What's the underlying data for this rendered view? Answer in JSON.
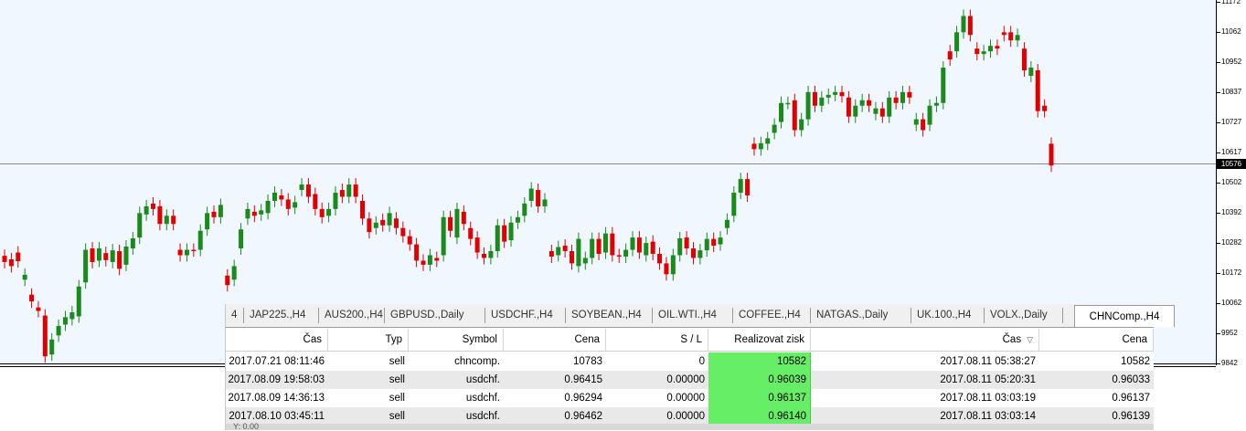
{
  "chart": {
    "axis_ticks": [
      "11172",
      "11062",
      "10952",
      "10837",
      "10727",
      "10617",
      "10502",
      "10392",
      "10282",
      "10172",
      "10062",
      "9952",
      "9842"
    ],
    "current_price": "10576",
    "colors": {
      "bull": "#1a8a1a",
      "bear": "#e00000",
      "background": "#f0f7ff",
      "price_line": "#888888"
    }
  },
  "chart_data": {
    "type": "candlestick",
    "ylim": [
      9842,
      11172
    ],
    "current_price": 10576,
    "series": [
      {
        "o": 10238,
        "c": 10215
      },
      {
        "o": 10225,
        "c": 10200
      },
      {
        "o": 10250,
        "c": 10218
      },
      {
        "o": 10150,
        "c": 10168
      },
      {
        "o": 10095,
        "c": 10070
      },
      {
        "o": 10048,
        "c": 10035
      },
      {
        "o": 10018,
        "c": 9868
      },
      {
        "o": 9875,
        "c": 9930
      },
      {
        "o": 9945,
        "c": 9980
      },
      {
        "o": 9985,
        "c": 10012
      },
      {
        "o": 10005,
        "c": 10030
      },
      {
        "o": 10015,
        "c": 10125
      },
      {
        "o": 10140,
        "c": 10260
      },
      {
        "o": 10265,
        "c": 10215
      },
      {
        "o": 10220,
        "c": 10265
      },
      {
        "o": 10248,
        "c": 10222
      },
      {
        "o": 10215,
        "c": 10258
      },
      {
        "o": 10255,
        "c": 10190
      },
      {
        "o": 10205,
        "c": 10272
      },
      {
        "o": 10265,
        "c": 10302
      },
      {
        "o": 10305,
        "c": 10395
      },
      {
        "o": 10390,
        "c": 10420
      },
      {
        "o": 10430,
        "c": 10410
      },
      {
        "o": 10420,
        "c": 10355
      },
      {
        "o": 10355,
        "c": 10385
      },
      {
        "o": 10385,
        "c": 10355
      },
      {
        "o": 10260,
        "c": 10240
      },
      {
        "o": 10240,
        "c": 10260
      },
      {
        "o": 10260,
        "c": 10258
      },
      {
        "o": 10260,
        "c": 10330
      },
      {
        "o": 10335,
        "c": 10395
      },
      {
        "o": 10400,
        "c": 10380
      },
      {
        "o": 10380,
        "c": 10425
      },
      {
        "o": 10165,
        "c": 10130
      },
      {
        "o": 10150,
        "c": 10200
      },
      {
        "o": 10265,
        "c": 10335
      },
      {
        "o": 10375,
        "c": 10410
      },
      {
        "o": 10400,
        "c": 10385
      },
      {
        "o": 10390,
        "c": 10405
      },
      {
        "o": 10395,
        "c": 10440
      },
      {
        "o": 10440,
        "c": 10470
      },
      {
        "o": 10460,
        "c": 10445
      },
      {
        "o": 10445,
        "c": 10410
      },
      {
        "o": 10415,
        "c": 10435
      },
      {
        "o": 10480,
        "c": 10500
      },
      {
        "o": 10500,
        "c": 10455
      },
      {
        "o": 10465,
        "c": 10410
      },
      {
        "o": 10410,
        "c": 10380
      },
      {
        "o": 10385,
        "c": 10410
      },
      {
        "o": 10410,
        "c": 10470
      },
      {
        "o": 10480,
        "c": 10455
      },
      {
        "o": 10455,
        "c": 10500
      },
      {
        "o": 10500,
        "c": 10455
      },
      {
        "o": 10440,
        "c": 10375
      },
      {
        "o": 10375,
        "c": 10325
      },
      {
        "o": 10340,
        "c": 10360
      },
      {
        "o": 10370,
        "c": 10350
      },
      {
        "o": 10350,
        "c": 10395
      },
      {
        "o": 10375,
        "c": 10340
      },
      {
        "o": 10340,
        "c": 10310
      },
      {
        "o": 10310,
        "c": 10280
      },
      {
        "o": 10280,
        "c": 10220
      },
      {
        "o": 10220,
        "c": 10205
      },
      {
        "o": 10205,
        "c": 10240
      },
      {
        "o": 10230,
        "c": 10220
      },
      {
        "o": 10240,
        "c": 10380
      },
      {
        "o": 10380,
        "c": 10330
      },
      {
        "o": 10305,
        "c": 10410
      },
      {
        "o": 10400,
        "c": 10355
      },
      {
        "o": 10340,
        "c": 10300
      },
      {
        "o": 10305,
        "c": 10250
      },
      {
        "o": 10245,
        "c": 10230
      },
      {
        "o": 10230,
        "c": 10255
      },
      {
        "o": 10255,
        "c": 10350
      },
      {
        "o": 10350,
        "c": 10290
      },
      {
        "o": 10295,
        "c": 10360
      },
      {
        "o": 10360,
        "c": 10380
      },
      {
        "o": 10385,
        "c": 10430
      },
      {
        "o": 10440,
        "c": 10485
      },
      {
        "o": 10480,
        "c": 10420
      },
      {
        "o": 10420,
        "c": 10445
      },
      {
        "o": 10255,
        "c": 10235
      },
      {
        "o": 10240,
        "c": 10270
      },
      {
        "o": 10275,
        "c": 10255
      },
      {
        "o": 10255,
        "c": 10210
      },
      {
        "o": 10200,
        "c": 10300
      },
      {
        "o": 10210,
        "c": 10230
      },
      {
        "o": 10230,
        "c": 10300
      },
      {
        "o": 10300,
        "c": 10245
      },
      {
        "o": 10250,
        "c": 10320
      },
      {
        "o": 10320,
        "c": 10240
      },
      {
        "o": 10240,
        "c": 10235
      },
      {
        "o": 10235,
        "c": 10260
      },
      {
        "o": 10260,
        "c": 10305
      },
      {
        "o": 10305,
        "c": 10250
      },
      {
        "o": 10240,
        "c": 10285
      },
      {
        "o": 10290,
        "c": 10245
      },
      {
        "o": 10245,
        "c": 10210
      },
      {
        "o": 10210,
        "c": 10170
      },
      {
        "o": 10170,
        "c": 10240
      },
      {
        "o": 10240,
        "c": 10302
      },
      {
        "o": 10305,
        "c": 10265
      },
      {
        "o": 10265,
        "c": 10230
      },
      {
        "o": 10230,
        "c": 10258
      },
      {
        "o": 10258,
        "c": 10300
      },
      {
        "o": 10300,
        "c": 10275
      },
      {
        "o": 10280,
        "c": 10305
      },
      {
        "o": 10340,
        "c": 10370
      },
      {
        "o": 10385,
        "c": 10470
      },
      {
        "o": 10470,
        "c": 10520
      },
      {
        "o": 10520,
        "c": 10460
      },
      {
        "o": 10650,
        "c": 10630
      },
      {
        "o": 10630,
        "c": 10652
      },
      {
        "o": 10650,
        "c": 10670
      },
      {
        "o": 10690,
        "c": 10720
      },
      {
        "o": 10730,
        "c": 10800
      },
      {
        "o": 10800,
        "c": 10800
      },
      {
        "o": 10810,
        "c": 10700
      },
      {
        "o": 10700,
        "c": 10740
      },
      {
        "o": 10740,
        "c": 10840
      },
      {
        "o": 10840,
        "c": 10790
      },
      {
        "o": 10790,
        "c": 10820
      },
      {
        "o": 10820,
        "c": 10830
      },
      {
        "o": 10830,
        "c": 10840
      },
      {
        "o": 10840,
        "c": 10825
      },
      {
        "o": 10820,
        "c": 10750
      },
      {
        "o": 10750,
        "c": 10790
      },
      {
        "o": 10790,
        "c": 10810
      },
      {
        "o": 10810,
        "c": 10790
      },
      {
        "o": 10760,
        "c": 10780
      },
      {
        "o": 10780,
        "c": 10750
      },
      {
        "o": 10750,
        "c": 10820
      },
      {
        "o": 10820,
        "c": 10800
      },
      {
        "o": 10800,
        "c": 10840
      },
      {
        "o": 10840,
        "c": 10820
      },
      {
        "o": 10720,
        "c": 10740
      },
      {
        "o": 10740,
        "c": 10700
      },
      {
        "o": 10720,
        "c": 10790
      },
      {
        "o": 10790,
        "c": 10800
      },
      {
        "o": 10800,
        "c": 10930
      },
      {
        "o": 10990,
        "c": 10960
      },
      {
        "o": 10990,
        "c": 11060
      },
      {
        "o": 11060,
        "c": 11120
      },
      {
        "o": 11120,
        "c": 11050
      },
      {
        "o": 11000,
        "c": 10980
      },
      {
        "o": 10980,
        "c": 10990
      },
      {
        "o": 10990,
        "c": 11010
      },
      {
        "o": 11010,
        "c": 11000
      },
      {
        "o": 11060,
        "c": 11050
      },
      {
        "o": 11060,
        "c": 11030
      },
      {
        "o": 11030,
        "c": 11050
      },
      {
        "o": 11000,
        "c": 10920
      },
      {
        "o": 10900,
        "c": 10930
      },
      {
        "o": 10920,
        "c": 10770
      },
      {
        "o": 10790,
        "c": 10770
      },
      {
        "o": 10650,
        "c": 10570
      }
    ]
  },
  "terminal": {
    "tabs": [
      "4",
      "JAP225.,H4",
      "AUS200.,H4",
      "GBPUSD.,Daily",
      "USDCHF.,H4",
      "SOYBEAN.,H4",
      "OIL.WTI.,H4",
      "COFFEE.,H4",
      "NATGAS.,Daily",
      "UK.100.,H4",
      "VOLX.,Daily",
      "CHNComp.,H4"
    ],
    "active_tab": "CHNComp.,H4",
    "columns": [
      "Čas",
      "Typ",
      "Symbol",
      "Cena",
      "S / L",
      "Realizovat zisk",
      "Čas",
      "Cena"
    ],
    "sort_indicator": "▽",
    "rows": [
      [
        "2017.07.21 08:11:46",
        "sell",
        "chncomp.",
        "10783",
        "0",
        "10582",
        "2017.08.11 05:38:27",
        "10582"
      ],
      [
        "2017.08.09 19:58:03",
        "sell",
        "usdchf.",
        "0.96415",
        "0.00000",
        "0.96039",
        "2017.08.11 05:20:31",
        "0.96033"
      ],
      [
        "2017.08.09 14:36:13",
        "sell",
        "usdchf.",
        "0.96294",
        "0.00000",
        "0.96137",
        "2017.08.11 03:03:19",
        "0.96137"
      ],
      [
        "2017.08.10 03:45:11",
        "sell",
        "usdchf.",
        "0.96462",
        "0.00000",
        "0.96140",
        "2017.08.11 03:03:14",
        "0.96139"
      ]
    ],
    "footer_text": "Y: 0.00"
  }
}
